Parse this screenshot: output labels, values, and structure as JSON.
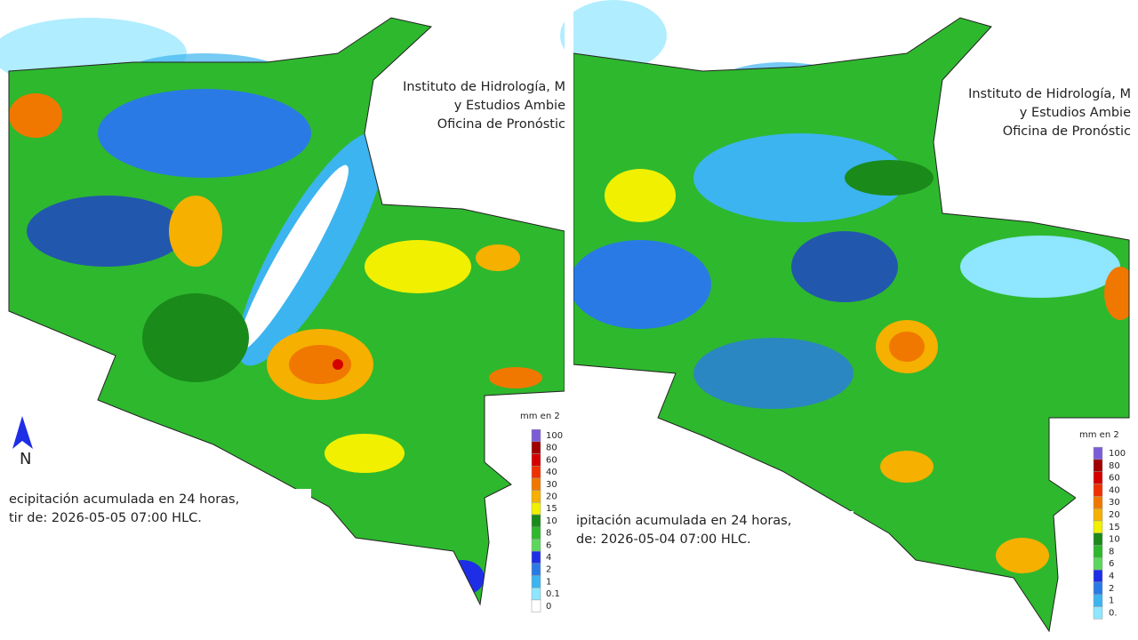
{
  "panels": [
    {
      "header": [
        "Instituto de Hidrología, M",
        "y Estudios Ambie",
        "Oficina de Pronóstic"
      ],
      "legend": {
        "title": "mm en 2",
        "labels": [
          "100",
          "80",
          "60",
          "40",
          "30",
          "20",
          "15",
          "10",
          "8",
          "6",
          "4",
          "2",
          "1",
          "0.1",
          "0"
        ]
      },
      "compass": "N",
      "caption": [
        "ecipitación acumulada en 24 horas,",
        "tir de: 2026-05-05 07:00 HLC."
      ]
    },
    {
      "header": [
        "Instituto de Hidrología, M",
        "y Estudios Ambie",
        "Oficina de Pronóstic"
      ],
      "legend": {
        "title": "mm en 2",
        "labels": [
          "100",
          "80",
          "60",
          "40",
          "30",
          "20",
          "15",
          "10",
          "8",
          "6",
          "4",
          "2",
          "1",
          "0."
        ]
      },
      "caption": [
        "ipitación acumulada en 24 horas,",
        "de: 2026-05-04 07:00 HLC."
      ]
    }
  ],
  "legend_colors": [
    "#7b5cd6",
    "#a00000",
    "#d40000",
    "#f03000",
    "#f07800",
    "#f5b000",
    "#f0f000",
    "#1a8a1a",
    "#2eb82e",
    "#5cd65c",
    "#1e2ee6",
    "#2a7ae6",
    "#3cb4f0",
    "#8ee6ff",
    "#ffffff"
  ]
}
